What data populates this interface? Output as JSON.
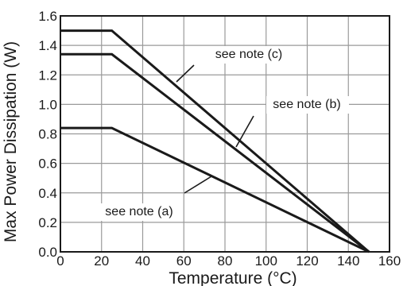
{
  "chart_data": {
    "type": "line",
    "title": "",
    "xlabel": "Temperature (°C)",
    "ylabel": "Max Power Dissipation (W)",
    "xlim": [
      0,
      160
    ],
    "ylim": [
      0,
      1.6
    ],
    "grid": true,
    "xticks": [
      0,
      20,
      40,
      60,
      80,
      100,
      120,
      140,
      160
    ],
    "yticks": [
      "0.0",
      "0.2",
      "0.4",
      "0.6",
      "0.8",
      "1.0",
      "1.2",
      "1.4",
      "1.6"
    ],
    "series": [
      {
        "x": [
          0,
          25,
          150
        ],
        "y": [
          1.5,
          1.5,
          0
        ]
      },
      {
        "x": [
          0,
          25,
          150
        ],
        "y": [
          1.34,
          1.34,
          0
        ]
      },
      {
        "x": [
          0,
          25,
          150
        ],
        "y": [
          0.84,
          0.84,
          0
        ]
      }
    ],
    "annotations": [
      {
        "text": "see note (c)"
      },
      {
        "text": "see note (b)"
      },
      {
        "text": "see note (a)"
      }
    ],
    "colors": {
      "line": "#1a1a1a",
      "grid": "#9a9a9a",
      "frame": "#1a1a1a"
    }
  }
}
